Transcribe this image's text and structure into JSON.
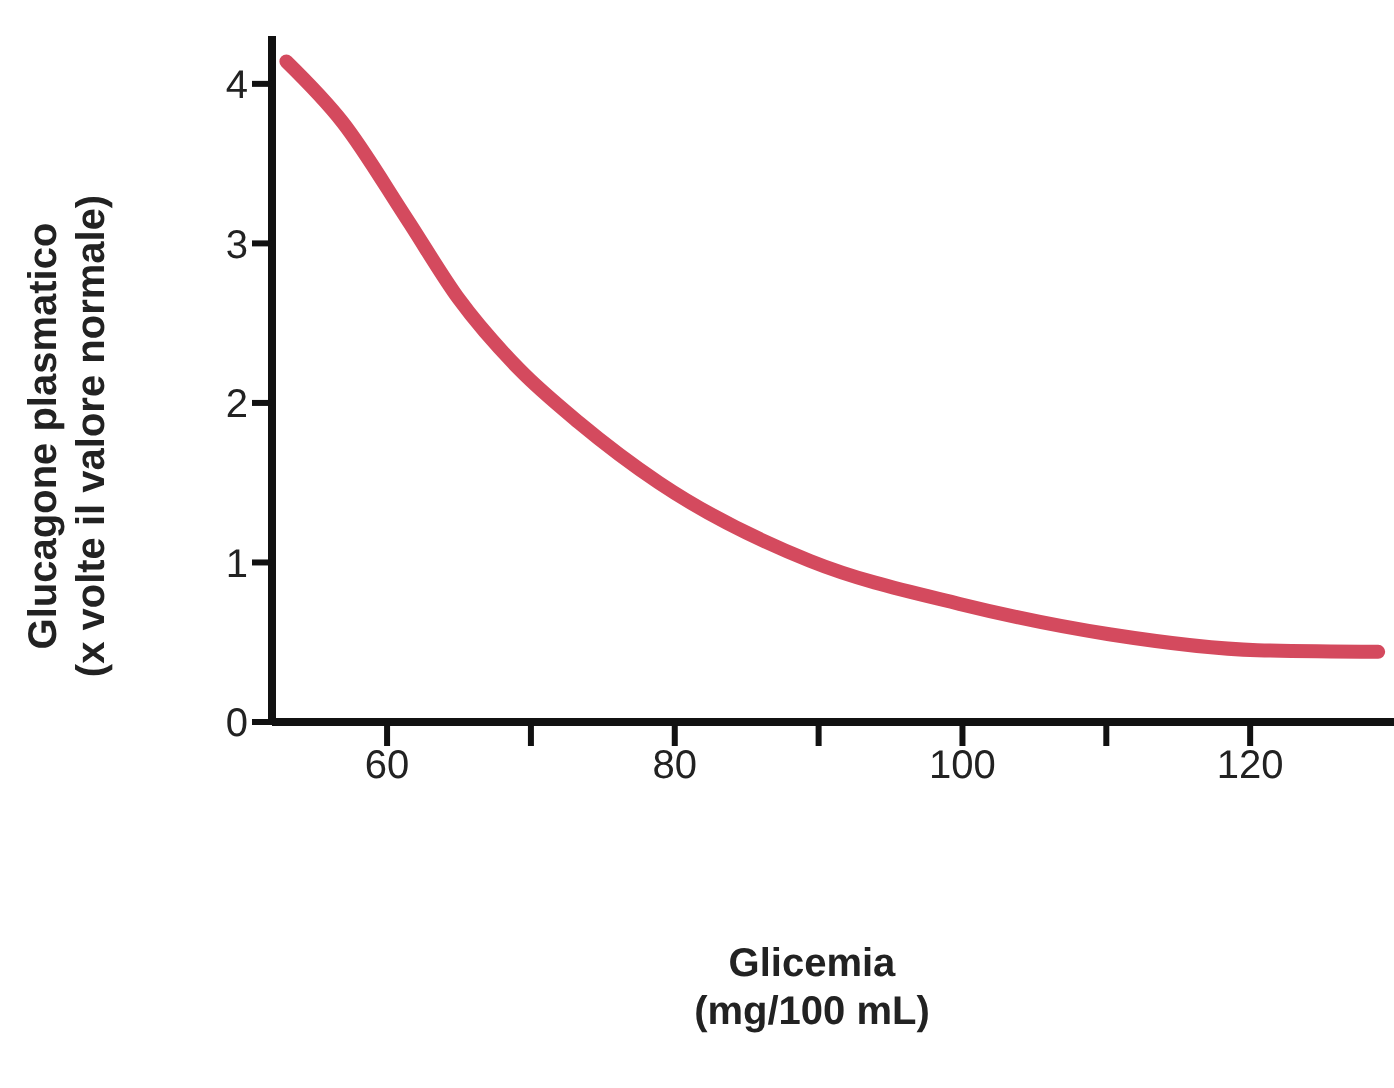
{
  "chart_data": {
    "type": "line",
    "xlabel": "Glicemia\n(mg/100 mL)",
    "ylabel": "Glucagone plasmatico\n(x volte il valore normale)",
    "x": [
      53,
      56.9,
      61.4,
      65,
      69.2,
      73.3,
      78.9,
      89.4,
      99.8,
      110.2,
      120.5,
      128.9
    ],
    "series": [
      {
        "color": "#d44a5e",
        "values": [
          4.14,
          3.76,
          3.15,
          2.65,
          2.21,
          1.88,
          1.5,
          1.01,
          0.74,
          0.55,
          0.45,
          0.44
        ]
      }
    ],
    "xlim": [
      52,
      130
    ],
    "xticks": [
      60,
      {
        "value": 70,
        "label": null
      },
      80,
      {
        "value": 90,
        "label": null
      },
      100,
      {
        "value": 110,
        "label": null
      },
      120
    ],
    "ylim": [
      0,
      4.3
    ],
    "yticks": [
      0,
      1,
      2,
      3,
      4
    ],
    "grid": false,
    "legend": false,
    "marker": "none",
    "line_style": "solid"
  }
}
